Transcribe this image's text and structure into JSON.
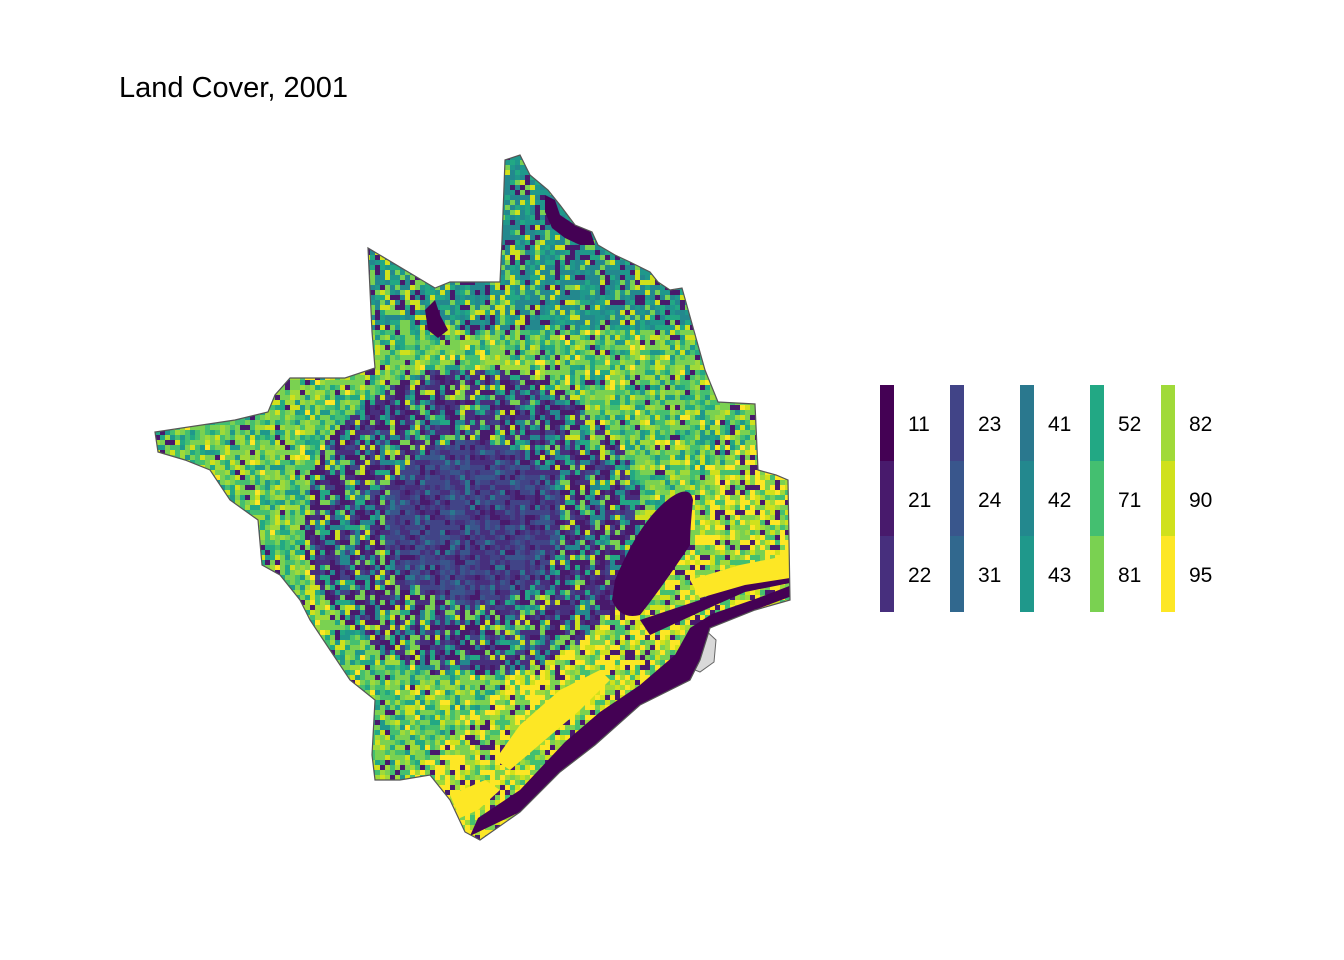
{
  "title": "Land Cover, 2001",
  "legend": {
    "columns": [
      [
        {
          "label": "11",
          "color": "#440154"
        },
        {
          "label": "21",
          "color": "#481a6c"
        },
        {
          "label": "22",
          "color": "#472f7d"
        }
      ],
      [
        {
          "label": "23",
          "color": "#414487"
        },
        {
          "label": "24",
          "color": "#39568c"
        },
        {
          "label": "31",
          "color": "#31688e"
        }
      ],
      [
        {
          "label": "41",
          "color": "#2a788e"
        },
        {
          "label": "42",
          "color": "#23888e"
        },
        {
          "label": "43",
          "color": "#1f988b"
        }
      ],
      [
        {
          "label": "52",
          "color": "#22a884"
        },
        {
          "label": "71",
          "color": "#44bf70"
        },
        {
          "label": "81",
          "color": "#7ad151"
        }
      ],
      [
        {
          "label": "82",
          "color": "#a0da39"
        },
        {
          "label": "90",
          "color": "#d0e11c"
        },
        {
          "label": "95",
          "color": "#fde725"
        }
      ]
    ]
  },
  "map": {
    "boundary_color": "#555555",
    "land_outside_color": "#d9d9d9"
  }
}
